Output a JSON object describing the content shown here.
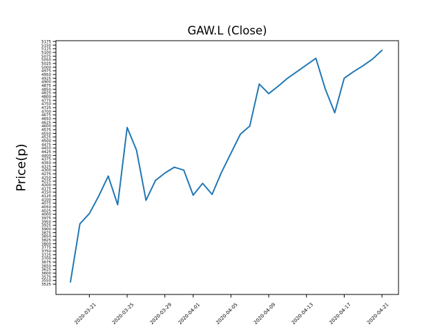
{
  "figure": {
    "background": "#ffffff"
  },
  "chart_data": {
    "type": "line",
    "title": "GAW.L (Close)",
    "ylabel": "Price(p)",
    "xlabel": "",
    "grid": false,
    "legend": "none",
    "axis_color": "#000000",
    "series": [
      {
        "name": "Close",
        "color": "#1f77b4",
        "dates": [
          "2020-03-19",
          "2020-03-20",
          "2020-03-21",
          "2020-03-22",
          "2020-03-23",
          "2020-03-24",
          "2020-03-25",
          "2020-03-26",
          "2020-03-27",
          "2020-03-28",
          "2020-03-29",
          "2020-03-30",
          "2020-03-31",
          "2020-04-01",
          "2020-04-02",
          "2020-04-03",
          "2020-04-04",
          "2020-04-05",
          "2020-04-06",
          "2020-04-07",
          "2020-04-08",
          "2020-04-09",
          "2020-04-10",
          "2020-04-11",
          "2020-04-12",
          "2020-04-13",
          "2020-04-14",
          "2020-04-15",
          "2020-04-16",
          "2020-04-17",
          "2020-04-18",
          "2020-04-19",
          "2020-04-20",
          "2020-04-21"
        ],
        "values": [
          3540,
          3935,
          4005,
          4125,
          4260,
          4065,
          4590,
          4435,
          4095,
          4230,
          4280,
          4320,
          4300,
          4130,
          4210,
          4135,
          4285,
          4415,
          4545,
          4600,
          4885,
          4820,
          4870,
          4925,
          4970,
          5015,
          5060,
          4850,
          4690,
          4925,
          4970,
          5010,
          5055,
          5115
        ]
      }
    ],
    "x_ticks": [
      "2020-03-21",
      "2020-03-25",
      "2020-03-29",
      "2020-04-01",
      "2020-04-05",
      "2020-04-09",
      "2020-04-13",
      "2020-04-17",
      "2020-04-21"
    ],
    "y_ticks": {
      "min": 3525,
      "max": 5175,
      "step": 25
    },
    "ylim": [
      3455,
      5180
    ],
    "xlim_days_from_first_date": [
      -1.54,
      34.75
    ]
  }
}
